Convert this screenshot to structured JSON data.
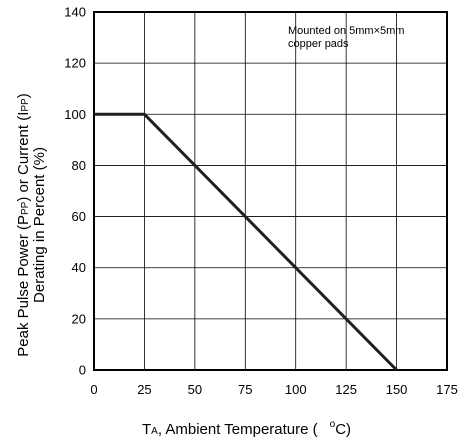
{
  "chart_data": {
    "type": "line",
    "x": [
      0,
      25,
      150
    ],
    "series": [
      {
        "values": [
          100,
          100,
          0
        ]
      }
    ],
    "xlim": [
      0,
      175
    ],
    "ylim": [
      0,
      140
    ],
    "x_ticks": [
      "0",
      "25",
      "50",
      "75",
      "100",
      "125",
      "150",
      "175"
    ],
    "y_ticks": [
      "0",
      "20",
      "40",
      "60",
      "80",
      "100",
      "120",
      "140"
    ],
    "grid": true,
    "xlabel": {
      "prefix": "T",
      "sub": "A",
      "text": ", Ambient Temperature (",
      "degree": "o",
      "unit": "C)"
    },
    "ylabel": {
      "line1_prefix": "Peak Pulse Power (P",
      "line1_sub1": "PP",
      "line1_mid": ") or Current (I",
      "line1_sub2": "PP",
      "line1_end": ")",
      "line2": "Derating in Percent (%)"
    },
    "annotation": {
      "line1": "Mounted on 5mm×5mm",
      "line2": "copper pads"
    }
  }
}
